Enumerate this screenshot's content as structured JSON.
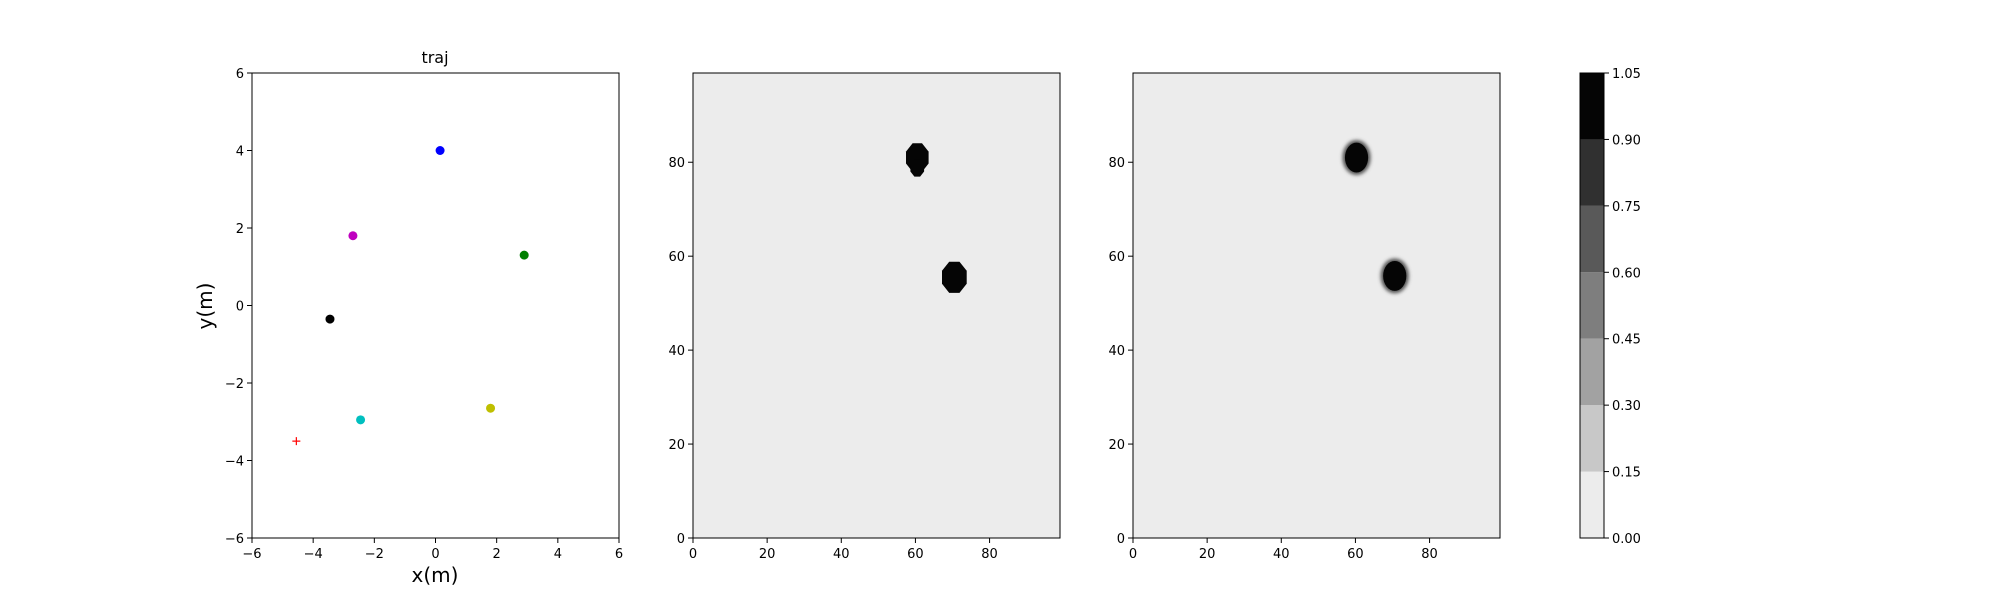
{
  "chart_data": [
    {
      "type": "scatter",
      "title": "traj",
      "xlabel": "x(m)",
      "ylabel": "y(m)",
      "xlim": [
        -6,
        6
      ],
      "ylim": [
        -6,
        6
      ],
      "xticks": [
        -6,
        -4,
        -2,
        0,
        2,
        4,
        6
      ],
      "yticks": [
        -6,
        -4,
        -2,
        0,
        2,
        4,
        6
      ],
      "points": [
        {
          "x": 0.15,
          "y": 4.0,
          "color": "#0000ff",
          "marker": "circle"
        },
        {
          "x": -2.7,
          "y": 1.8,
          "color": "#bf00bf",
          "marker": "circle"
        },
        {
          "x": 2.9,
          "y": 1.3,
          "color": "#008000",
          "marker": "circle"
        },
        {
          "x": -3.45,
          "y": -0.35,
          "color": "#000000",
          "marker": "circle"
        },
        {
          "x": -2.45,
          "y": -2.95,
          "color": "#00bfbf",
          "marker": "circle"
        },
        {
          "x": 1.8,
          "y": -2.65,
          "color": "#bfbf00",
          "marker": "circle"
        },
        {
          "x": -4.55,
          "y": -3.5,
          "color": "#ff0000",
          "marker": "plus"
        }
      ]
    },
    {
      "type": "heatmap",
      "title": "",
      "xlim": [
        0,
        99
      ],
      "ylim": [
        0,
        99
      ],
      "xticks": [
        0,
        20,
        40,
        60,
        80
      ],
      "yticks": [
        0,
        20,
        40,
        60,
        80
      ],
      "background_value": 0.05,
      "blobs": [
        {
          "cx": 60.5,
          "cy": 81,
          "r": 3.3,
          "value": 1.0,
          "shape": "octagon",
          "soft": false
        },
        {
          "cx": 60.5,
          "cy": 78.8,
          "r": 2.0,
          "value": 1.0,
          "shape": "octagon",
          "soft": false
        },
        {
          "cx": 70.5,
          "cy": 55.5,
          "r": 3.6,
          "value": 1.0,
          "shape": "octagon",
          "soft": false
        }
      ]
    },
    {
      "type": "heatmap",
      "title": "",
      "xlim": [
        0,
        99
      ],
      "ylim": [
        0,
        99
      ],
      "xticks": [
        0,
        20,
        40,
        60,
        80
      ],
      "yticks": [
        0,
        20,
        40,
        60,
        80
      ],
      "background_value": 0.05,
      "blobs": [
        {
          "cx": 60.3,
          "cy": 81,
          "r": 3.4,
          "value": 1.0,
          "shape": "ellipse",
          "soft": true
        },
        {
          "cx": 70.6,
          "cy": 55.8,
          "r": 3.4,
          "value": 1.0,
          "shape": "ellipse",
          "soft": true
        }
      ]
    }
  ],
  "colorbar": {
    "min": 0.0,
    "max": 1.05,
    "levels": [
      0.0,
      0.15,
      0.3,
      0.45,
      0.6,
      0.75,
      0.9,
      1.05
    ],
    "tick_labels": [
      "0.00",
      "0.15",
      "0.30",
      "0.45",
      "0.60",
      "0.75",
      "0.90",
      "1.05"
    ],
    "colors": [
      "#ececec",
      "#c8c8c8",
      "#a2a2a2",
      "#7e7e7e",
      "#595959",
      "#303030",
      "#050505"
    ]
  }
}
